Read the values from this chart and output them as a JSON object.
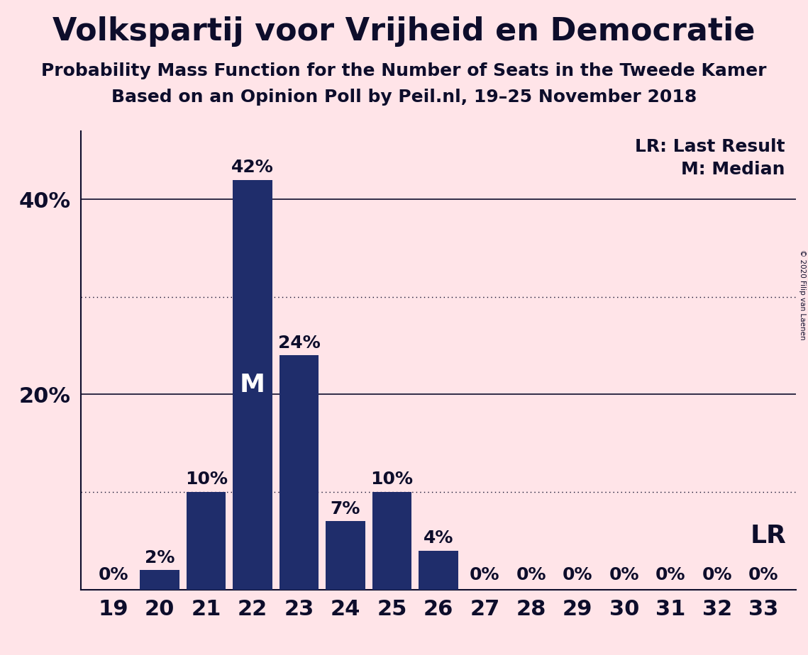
{
  "title": "Volkspartij voor Vrijheid en Democratie",
  "subtitle": "Probability Mass Function for the Number of Seats in the Tweede Kamer",
  "subsubtitle": "Based on an Opinion Poll by Peil.nl, 19–25 November 2018",
  "copyright": "© 2020 Filip van Laenen",
  "categories": [
    19,
    20,
    21,
    22,
    23,
    24,
    25,
    26,
    27,
    28,
    29,
    30,
    31,
    32,
    33
  ],
  "values": [
    0,
    2,
    10,
    42,
    24,
    7,
    10,
    4,
    0,
    0,
    0,
    0,
    0,
    0,
    0
  ],
  "bar_color": "#1F2D6B",
  "background_color": "#FFE4E8",
  "text_color": "#0D0D2B",
  "median_seat": 22,
  "lr_seat": 33,
  "yticks_labeled": [
    20,
    40
  ],
  "yticks_all": [
    0,
    10,
    20,
    30,
    40
  ],
  "ylim": [
    0,
    47
  ],
  "dotted_lines": [
    10,
    30
  ],
  "solid_lines": [
    20,
    40
  ],
  "legend_lr": "LR: Last Result",
  "legend_m": "M: Median",
  "title_fontsize": 32,
  "subtitle_fontsize": 18,
  "subsubtitle_fontsize": 18,
  "bar_label_fontsize": 18,
  "tick_fontsize": 22,
  "median_label_fontsize": 26,
  "lr_label_fontsize": 26,
  "legend_fontsize": 18
}
